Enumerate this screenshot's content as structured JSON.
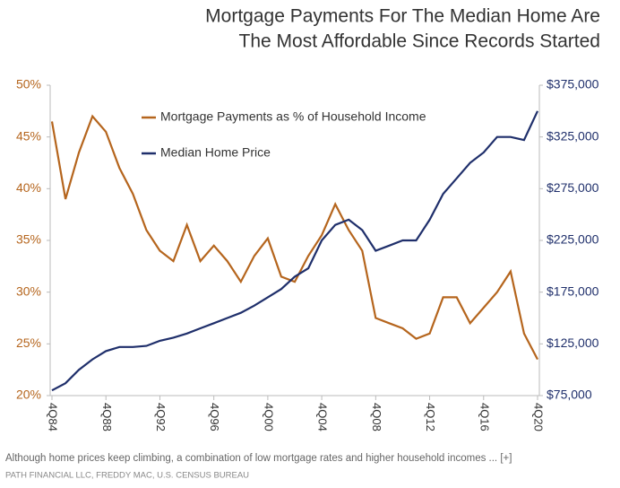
{
  "chart_data": {
    "type": "line",
    "title": "Mortgage Payments For The Median Home Are",
    "subtitle": "The Most Affordable Since Records Started",
    "caption": "Although home prices keep climbing, a combination of low mortgage rates and higher household incomes ... [+]",
    "source": "PATH FINANCIAL LLC, FREDDY MAC, U.S. CENSUS BUREAU",
    "categories": [
      "4Q84",
      null,
      null,
      null,
      "4Q88",
      null,
      null,
      null,
      "4Q92",
      null,
      null,
      null,
      "4Q96",
      null,
      null,
      null,
      "4Q00",
      null,
      null,
      null,
      "4Q04",
      null,
      null,
      null,
      "4Q08",
      null,
      null,
      null,
      "4Q12",
      null,
      null,
      null,
      "4Q16",
      null,
      null,
      null,
      "4Q20"
    ],
    "series": [
      {
        "name": "Mortgage Payments as % of Household Income",
        "color": "#b5651d",
        "axis": "y",
        "values": [
          46.5,
          39,
          43.5,
          47,
          45.5,
          42,
          39.5,
          36,
          34,
          33,
          36.5,
          33,
          34.5,
          33,
          31,
          33.5,
          35.2,
          31.5,
          31,
          33.5,
          35.5,
          38.5,
          36,
          34,
          27.5,
          27,
          26.5,
          25.5,
          26,
          29.5,
          29.5,
          27,
          28.5,
          30,
          32,
          26,
          23.5
        ]
      },
      {
        "name": "Median Home Price",
        "color": "#1f2f6b",
        "axis": "y2",
        "values": [
          80000,
          87000,
          100000,
          110000,
          118000,
          122000,
          122000,
          123000,
          128000,
          131000,
          135000,
          140000,
          145000,
          150000,
          155000,
          162000,
          170000,
          178000,
          190000,
          198000,
          225000,
          240000,
          245000,
          235000,
          215000,
          220000,
          225000,
          225000,
          245000,
          270000,
          285000,
          300000,
          310000,
          325000,
          325000,
          322000,
          350000
        ]
      }
    ],
    "ylim": [
      20,
      50
    ],
    "yticks": [
      {
        "value": 20,
        "label": "20%"
      },
      {
        "value": 25,
        "label": "25%"
      },
      {
        "value": 30,
        "label": "30%"
      },
      {
        "value": 35,
        "label": "35%"
      },
      {
        "value": 40,
        "label": "40%"
      },
      {
        "value": 45,
        "label": "45%"
      },
      {
        "value": 50,
        "label": "50%"
      }
    ],
    "y2lim": [
      75000,
      375000
    ],
    "y2ticks": [
      {
        "value": 75000,
        "label": "$75,000"
      },
      {
        "value": 125000,
        "label": "$125,000"
      },
      {
        "value": 175000,
        "label": "$175,000"
      },
      {
        "value": 225000,
        "label": "$225,000"
      },
      {
        "value": 275000,
        "label": "$275,000"
      },
      {
        "value": 325000,
        "label": "$325,000"
      },
      {
        "value": 375000,
        "label": "$375,000"
      }
    ],
    "grid": false,
    "legend": "upper-left"
  }
}
